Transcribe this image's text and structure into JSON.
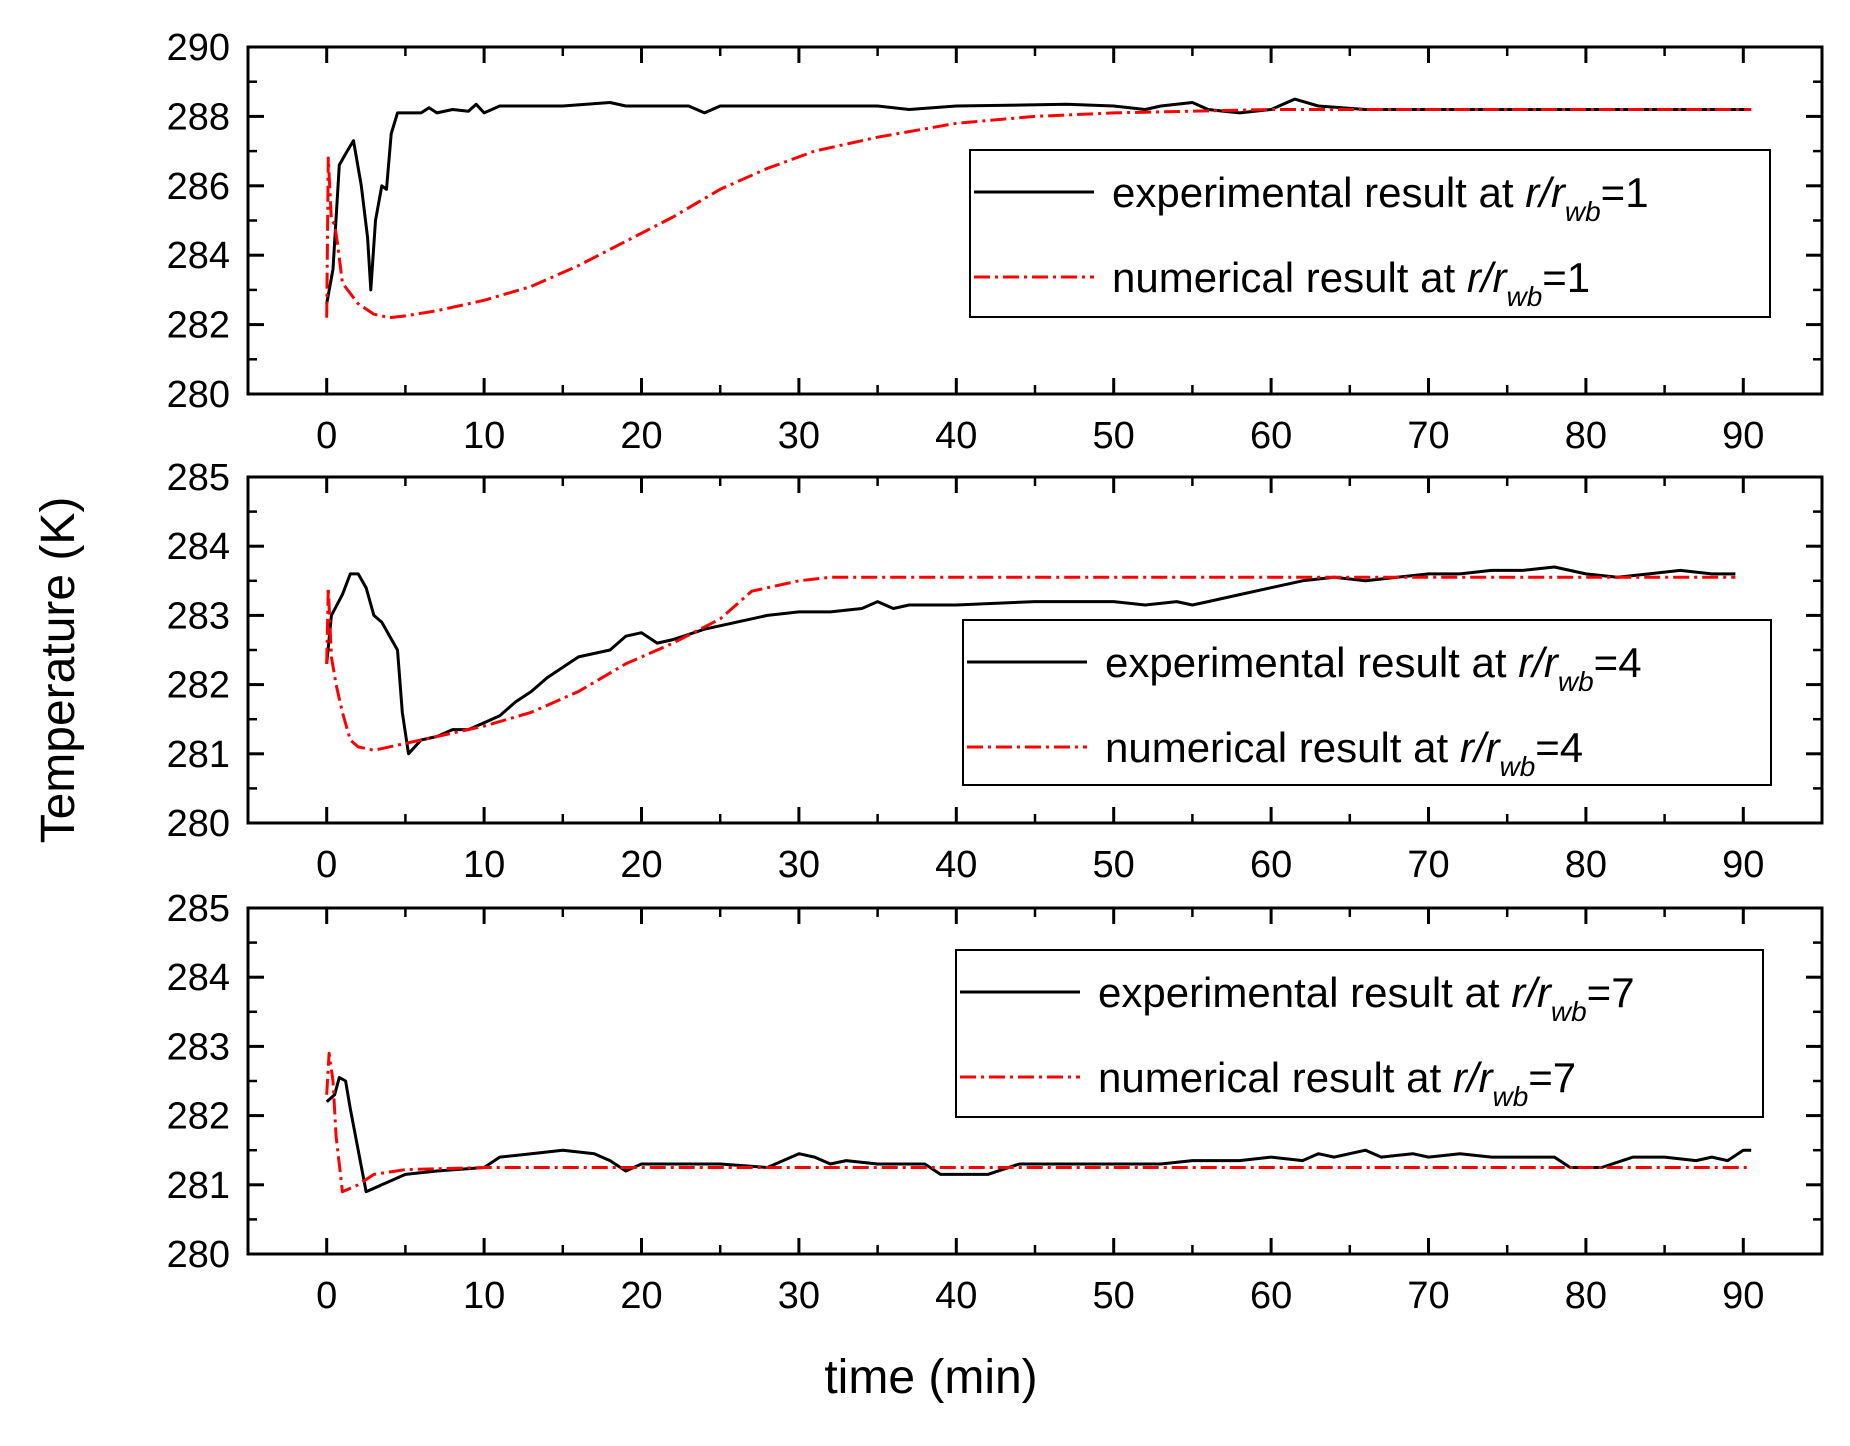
{
  "ylabel": "Temperature (K)",
  "xlabel": "time (min)",
  "colors": {
    "experimental": "#000000",
    "numerical": "#ff0000"
  },
  "chart_data": [
    {
      "type": "line",
      "title": "",
      "xlim": [
        -5,
        95
      ],
      "ylim": [
        280,
        290
      ],
      "xticks": [
        0,
        10,
        20,
        30,
        40,
        50,
        60,
        70,
        80,
        90
      ],
      "yticks": [
        280,
        282,
        284,
        286,
        288,
        290
      ],
      "legend": {
        "location": "right",
        "entries": [
          {
            "prefix": "experimental result at ",
            "var": "r",
            "sep": "/",
            "sub_base": "r",
            "sub": "wb",
            "suffix": "=1"
          },
          {
            "prefix": "numerical result at ",
            "var": "r",
            "sep": "/",
            "sub_base": "r",
            "sub": "wb",
            "suffix": "=1"
          }
        ]
      },
      "series": [
        {
          "name": "experimental result at r/rwb=1",
          "style": "solid",
          "points": [
            [
              0,
              282.6
            ],
            [
              0.4,
              283.6
            ],
            [
              0.8,
              286.6
            ],
            [
              1.3,
              287.0
            ],
            [
              1.7,
              287.3
            ],
            [
              2.2,
              286.0
            ],
            [
              2.6,
              284.5
            ],
            [
              2.8,
              283.0
            ],
            [
              3.1,
              285.0
            ],
            [
              3.5,
              286.0
            ],
            [
              3.8,
              285.9
            ],
            [
              4.1,
              287.5
            ],
            [
              4.5,
              288.1
            ],
            [
              6,
              288.1
            ],
            [
              6.5,
              288.25
            ],
            [
              7,
              288.1
            ],
            [
              8,
              288.2
            ],
            [
              9,
              288.15
            ],
            [
              9.5,
              288.35
            ],
            [
              10,
              288.1
            ],
            [
              11,
              288.3
            ],
            [
              15,
              288.3
            ],
            [
              18,
              288.4
            ],
            [
              19,
              288.3
            ],
            [
              23,
              288.3
            ],
            [
              24,
              288.1
            ],
            [
              25,
              288.3
            ],
            [
              35,
              288.3
            ],
            [
              37,
              288.2
            ],
            [
              40,
              288.3
            ],
            [
              47,
              288.35
            ],
            [
              50,
              288.3
            ],
            [
              52,
              288.2
            ],
            [
              53,
              288.3
            ],
            [
              55,
              288.4
            ],
            [
              56,
              288.2
            ],
            [
              57,
              288.15
            ],
            [
              58,
              288.1
            ],
            [
              60,
              288.2
            ],
            [
              61.5,
              288.5
            ],
            [
              63,
              288.3
            ],
            [
              66,
              288.2
            ],
            [
              90.5,
              288.2
            ]
          ]
        },
        {
          "name": "numerical result at r/rwb=1",
          "style": "dashdot",
          "points": [
            [
              0,
              282.2
            ],
            [
              0.1,
              286.8
            ],
            [
              0.3,
              285.0
            ],
            [
              0.5,
              284.9
            ],
            [
              0.7,
              284.3
            ],
            [
              1,
              283.2
            ],
            [
              2,
              282.6
            ],
            [
              3,
              282.3
            ],
            [
              4,
              282.2
            ],
            [
              5,
              282.25
            ],
            [
              7,
              282.4
            ],
            [
              10,
              282.7
            ],
            [
              13,
              283.1
            ],
            [
              16,
              283.7
            ],
            [
              19,
              284.4
            ],
            [
              22,
              285.1
            ],
            [
              25,
              285.9
            ],
            [
              28,
              286.5
            ],
            [
              31,
              287.0
            ],
            [
              35,
              287.4
            ],
            [
              40,
              287.8
            ],
            [
              45,
              288.0
            ],
            [
              50,
              288.1
            ],
            [
              55,
              288.15
            ],
            [
              60,
              288.2
            ],
            [
              90.5,
              288.2
            ]
          ]
        }
      ]
    },
    {
      "type": "line",
      "title": "",
      "xlim": [
        -5,
        95
      ],
      "ylim": [
        280,
        285
      ],
      "xticks": [
        0,
        10,
        20,
        30,
        40,
        50,
        60,
        70,
        80,
        90
      ],
      "yticks": [
        280,
        281,
        282,
        283,
        284,
        285
      ],
      "legend": {
        "location": "right",
        "entries": [
          {
            "prefix": "experimental result at ",
            "var": "r",
            "sep": "/",
            "sub_base": "r",
            "sub": "wb",
            "suffix": "=4"
          },
          {
            "prefix": "numerical result at ",
            "var": "r",
            "sep": "/",
            "sub_base": "r",
            "sub": "wb",
            "suffix": "=4"
          }
        ]
      },
      "series": [
        {
          "name": "experimental result at r/rwb=4",
          "style": "solid",
          "points": [
            [
              0,
              282.3
            ],
            [
              0.3,
              283.0
            ],
            [
              1,
              283.3
            ],
            [
              1.5,
              283.6
            ],
            [
              2,
              283.6
            ],
            [
              2.5,
              283.4
            ],
            [
              3,
              283.0
            ],
            [
              3.5,
              282.9
            ],
            [
              4,
              282.7
            ],
            [
              4.5,
              282.5
            ],
            [
              4.8,
              281.6
            ],
            [
              5.2,
              281.0
            ],
            [
              6,
              281.2
            ],
            [
              7,
              281.25
            ],
            [
              8,
              281.35
            ],
            [
              9,
              281.35
            ],
            [
              10,
              281.45
            ],
            [
              11,
              281.55
            ],
            [
              12,
              281.75
            ],
            [
              13,
              281.9
            ],
            [
              14,
              282.1
            ],
            [
              16,
              282.4
            ],
            [
              18,
              282.5
            ],
            [
              19,
              282.7
            ],
            [
              20,
              282.75
            ],
            [
              21,
              282.6
            ],
            [
              22,
              282.65
            ],
            [
              24,
              282.8
            ],
            [
              26,
              282.9
            ],
            [
              28,
              283.0
            ],
            [
              30,
              283.05
            ],
            [
              32,
              283.05
            ],
            [
              34,
              283.1
            ],
            [
              35,
              283.2
            ],
            [
              36,
              283.1
            ],
            [
              37,
              283.15
            ],
            [
              40,
              283.15
            ],
            [
              45,
              283.2
            ],
            [
              50,
              283.2
            ],
            [
              52,
              283.15
            ],
            [
              54,
              283.2
            ],
            [
              55,
              283.15
            ],
            [
              56,
              283.2
            ],
            [
              58,
              283.3
            ],
            [
              60,
              283.4
            ],
            [
              62,
              283.5
            ],
            [
              64,
              283.55
            ],
            [
              66,
              283.5
            ],
            [
              68,
              283.55
            ],
            [
              70,
              283.6
            ],
            [
              72,
              283.6
            ],
            [
              74,
              283.65
            ],
            [
              76,
              283.65
            ],
            [
              78,
              283.7
            ],
            [
              80,
              283.6
            ],
            [
              82,
              283.55
            ],
            [
              84,
              283.6
            ],
            [
              86,
              283.65
            ],
            [
              88,
              283.6
            ],
            [
              89.5,
              283.6
            ]
          ]
        },
        {
          "name": "numerical result at r/rwb=4",
          "style": "dashdot",
          "points": [
            [
              0,
              282.3
            ],
            [
              0.1,
              283.4
            ],
            [
              0.3,
              282.4
            ],
            [
              0.6,
              282.0
            ],
            [
              1,
              281.6
            ],
            [
              1.5,
              281.2
            ],
            [
              2,
              281.1
            ],
            [
              3,
              281.05
            ],
            [
              5,
              281.15
            ],
            [
              7,
              281.25
            ],
            [
              10,
              281.4
            ],
            [
              13,
              281.6
            ],
            [
              16,
              281.9
            ],
            [
              19,
              282.3
            ],
            [
              22,
              282.6
            ],
            [
              25,
              282.95
            ],
            [
              27,
              283.35
            ],
            [
              30,
              283.5
            ],
            [
              32,
              283.55
            ],
            [
              89.5,
              283.55
            ]
          ]
        }
      ]
    },
    {
      "type": "line",
      "title": "",
      "xlim": [
        -5,
        95
      ],
      "ylim": [
        280,
        285
      ],
      "xticks": [
        0,
        10,
        20,
        30,
        40,
        50,
        60,
        70,
        80,
        90
      ],
      "yticks": [
        280,
        281,
        282,
        283,
        284,
        285
      ],
      "legend": {
        "location": "top-right",
        "entries": [
          {
            "prefix": "experimental result at ",
            "var": "r",
            "sep": "/",
            "sub_base": "r",
            "sub": "wb",
            "suffix": "=7"
          },
          {
            "prefix": "numerical result at ",
            "var": "r",
            "sep": "/",
            "sub_base": "r",
            "sub": "wb",
            "suffix": "=7"
          }
        ]
      },
      "series": [
        {
          "name": "experimental result at r/rwb=7",
          "style": "solid",
          "points": [
            [
              0,
              282.2
            ],
            [
              0.5,
              282.3
            ],
            [
              0.8,
              282.55
            ],
            [
              1.2,
              282.5
            ],
            [
              1.5,
              282.1
            ],
            [
              2,
              281.5
            ],
            [
              2.5,
              280.9
            ],
            [
              3.5,
              281.0
            ],
            [
              5,
              281.15
            ],
            [
              7,
              281.2
            ],
            [
              10,
              281.25
            ],
            [
              11,
              281.4
            ],
            [
              13,
              281.45
            ],
            [
              15,
              281.5
            ],
            [
              17,
              281.45
            ],
            [
              18,
              281.35
            ],
            [
              19,
              281.2
            ],
            [
              20,
              281.3
            ],
            [
              23,
              281.3
            ],
            [
              25,
              281.3
            ],
            [
              28,
              281.25
            ],
            [
              30,
              281.45
            ],
            [
              31,
              281.4
            ],
            [
              32,
              281.3
            ],
            [
              33,
              281.35
            ],
            [
              35,
              281.3
            ],
            [
              38,
              281.3
            ],
            [
              39,
              281.15
            ],
            [
              42,
              281.15
            ],
            [
              44,
              281.3
            ],
            [
              46,
              281.3
            ],
            [
              50,
              281.3
            ],
            [
              53,
              281.3
            ],
            [
              55,
              281.35
            ],
            [
              58,
              281.35
            ],
            [
              60,
              281.4
            ],
            [
              62,
              281.35
            ],
            [
              63,
              281.45
            ],
            [
              64,
              281.4
            ],
            [
              66,
              281.5
            ],
            [
              67,
              281.4
            ],
            [
              69,
              281.45
            ],
            [
              70,
              281.4
            ],
            [
              72,
              281.45
            ],
            [
              74,
              281.4
            ],
            [
              78,
              281.4
            ],
            [
              79,
              281.25
            ],
            [
              81,
              281.25
            ],
            [
              83,
              281.4
            ],
            [
              85,
              281.4
            ],
            [
              87,
              281.35
            ],
            [
              88,
              281.4
            ],
            [
              89,
              281.35
            ],
            [
              90,
              281.5
            ],
            [
              90.5,
              281.5
            ]
          ]
        },
        {
          "name": "numerical result at r/rwb=7",
          "style": "dashdot",
          "points": [
            [
              0,
              282.3
            ],
            [
              0.15,
              282.9
            ],
            [
              0.4,
              282.5
            ],
            [
              0.6,
              281.7
            ],
            [
              0.8,
              281.3
            ],
            [
              1,
              280.9
            ],
            [
              2,
              281.0
            ],
            [
              3,
              281.15
            ],
            [
              5,
              281.22
            ],
            [
              10,
              281.25
            ],
            [
              90.5,
              281.25
            ]
          ]
        }
      ]
    }
  ]
}
